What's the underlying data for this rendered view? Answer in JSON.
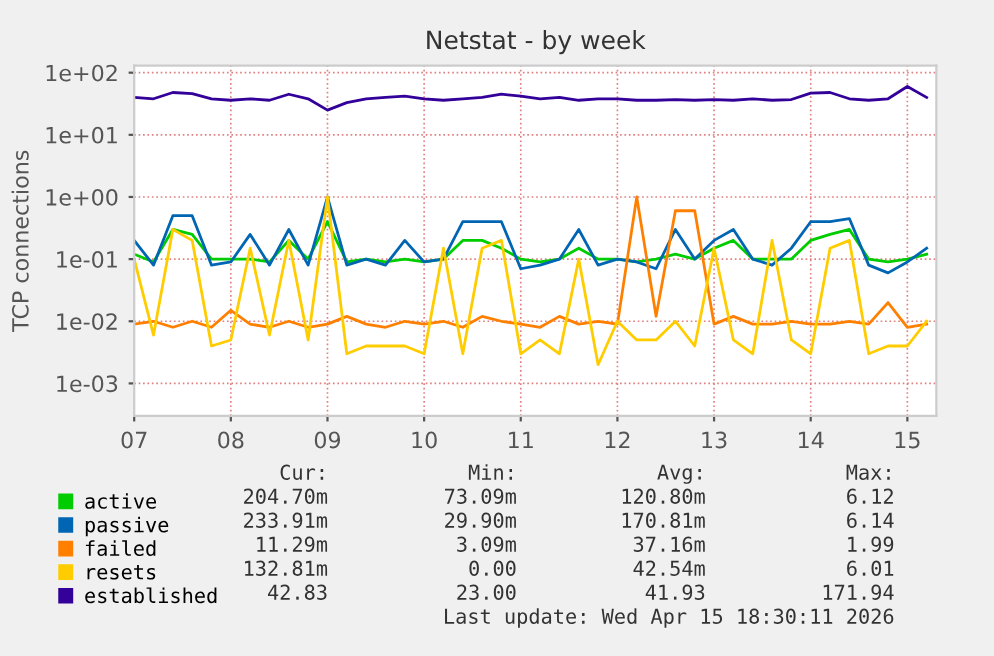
{
  "chart_data": {
    "type": "line",
    "title": "Netstat - by week",
    "ylabel": "TCP connections",
    "x": [
      7.0,
      7.2,
      7.4,
      7.6,
      7.8,
      8.0,
      8.2,
      8.4,
      8.6,
      8.8,
      9.0,
      9.2,
      9.4,
      9.6,
      9.8,
      10.0,
      10.2,
      10.4,
      10.6,
      10.8,
      11.0,
      11.2,
      11.4,
      11.6,
      11.8,
      12.0,
      12.2,
      12.4,
      12.6,
      12.8,
      13.0,
      13.2,
      13.4,
      13.6,
      13.8,
      14.0,
      14.2,
      14.4,
      14.6,
      14.8,
      15.0,
      15.2
    ],
    "series": [
      {
        "name": "active",
        "color": "#00cc00",
        "values": [
          0.12,
          0.09,
          0.3,
          0.25,
          0.1,
          0.1,
          0.1,
          0.09,
          0.2,
          0.1,
          0.4,
          0.09,
          0.1,
          0.09,
          0.1,
          0.09,
          0.1,
          0.2,
          0.2,
          0.15,
          0.1,
          0.09,
          0.1,
          0.15,
          0.1,
          0.1,
          0.09,
          0.1,
          0.12,
          0.1,
          0.15,
          0.2,
          0.1,
          0.1,
          0.1,
          0.2,
          0.25,
          0.3,
          0.1,
          0.09,
          0.1,
          0.12
        ]
      },
      {
        "name": "passive",
        "color": "#0066b3",
        "values": [
          0.2,
          0.08,
          0.5,
          0.5,
          0.08,
          0.09,
          0.25,
          0.08,
          0.3,
          0.08,
          1.0,
          0.08,
          0.1,
          0.08,
          0.2,
          0.09,
          0.1,
          0.4,
          0.4,
          0.4,
          0.07,
          0.08,
          0.1,
          0.3,
          0.08,
          0.1,
          0.09,
          0.07,
          0.3,
          0.1,
          0.2,
          0.3,
          0.1,
          0.08,
          0.15,
          0.4,
          0.4,
          0.45,
          0.08,
          0.06,
          0.09,
          0.15
        ]
      },
      {
        "name": "failed",
        "color": "#ff8000",
        "values": [
          0.009,
          0.01,
          0.008,
          0.01,
          0.008,
          0.015,
          0.009,
          0.008,
          0.01,
          0.008,
          0.009,
          0.012,
          0.009,
          0.008,
          0.01,
          0.009,
          0.01,
          0.008,
          0.012,
          0.01,
          0.009,
          0.008,
          0.012,
          0.009,
          0.01,
          0.009,
          1.0,
          0.012,
          0.6,
          0.6,
          0.009,
          0.012,
          0.009,
          0.009,
          0.01,
          0.009,
          0.009,
          0.01,
          0.009,
          0.02,
          0.008,
          0.009
        ]
      },
      {
        "name": "resets",
        "color": "#ffcc00",
        "values": [
          0.1,
          0.006,
          0.3,
          0.2,
          0.004,
          0.005,
          0.15,
          0.006,
          0.2,
          0.005,
          1.0,
          0.003,
          0.004,
          0.004,
          0.004,
          0.003,
          0.15,
          0.003,
          0.15,
          0.2,
          0.003,
          0.005,
          0.003,
          0.1,
          0.002,
          0.01,
          0.005,
          0.005,
          0.01,
          0.004,
          0.15,
          0.005,
          0.003,
          0.2,
          0.005,
          0.003,
          0.15,
          0.2,
          0.003,
          0.004,
          0.004,
          0.01
        ]
      },
      {
        "name": "established",
        "color": "#330099",
        "values": [
          40,
          38,
          48,
          46,
          38,
          36,
          38,
          36,
          45,
          38,
          25,
          33,
          38,
          40,
          42,
          38,
          36,
          38,
          40,
          45,
          42,
          38,
          40,
          36,
          38,
          38,
          36,
          36,
          37,
          36,
          37,
          36,
          38,
          36,
          37,
          47,
          48,
          38,
          36,
          38,
          60,
          40
        ]
      }
    ],
    "log": "y",
    "ylim": [
      0.0003,
      130
    ],
    "yticks": [
      {
        "value": 0.001,
        "label": "1e-03"
      },
      {
        "value": 0.01,
        "label": "1e-02"
      },
      {
        "value": 0.1,
        "label": "1e-01"
      },
      {
        "value": 1,
        "label": "1e+00"
      },
      {
        "value": 10,
        "label": "1e+01"
      },
      {
        "value": 100,
        "label": "1e+02"
      }
    ],
    "xlim": [
      7.0,
      15.3
    ],
    "xticks": [
      {
        "value": 7,
        "label": "07"
      },
      {
        "value": 8,
        "label": "08"
      },
      {
        "value": 9,
        "label": "09"
      },
      {
        "value": 10,
        "label": "10"
      },
      {
        "value": 11,
        "label": "11"
      },
      {
        "value": 12,
        "label": "12"
      },
      {
        "value": 13,
        "label": "13"
      },
      {
        "value": 14,
        "label": "14"
      },
      {
        "value": 15,
        "label": "15"
      }
    ],
    "grid": true,
    "legend": "bottom",
    "marker": "none",
    "line_style": "solid",
    "annotations": [
      "Cur:",
      "Min:",
      "Avg:",
      "Max:",
      "204.70m",
      "73.09m",
      "120.80m",
      "6.12",
      "233.91m",
      "29.90m",
      "170.81m",
      "6.14",
      "11.29m",
      "3.09m",
      "37.16m",
      "1.99",
      "132.81m",
      "0.00",
      "42.54m",
      "6.01",
      "42.83",
      "23.00",
      "41.93",
      "171.94",
      "Last update: Wed Apr 15 18:30:11 2026"
    ]
  }
}
